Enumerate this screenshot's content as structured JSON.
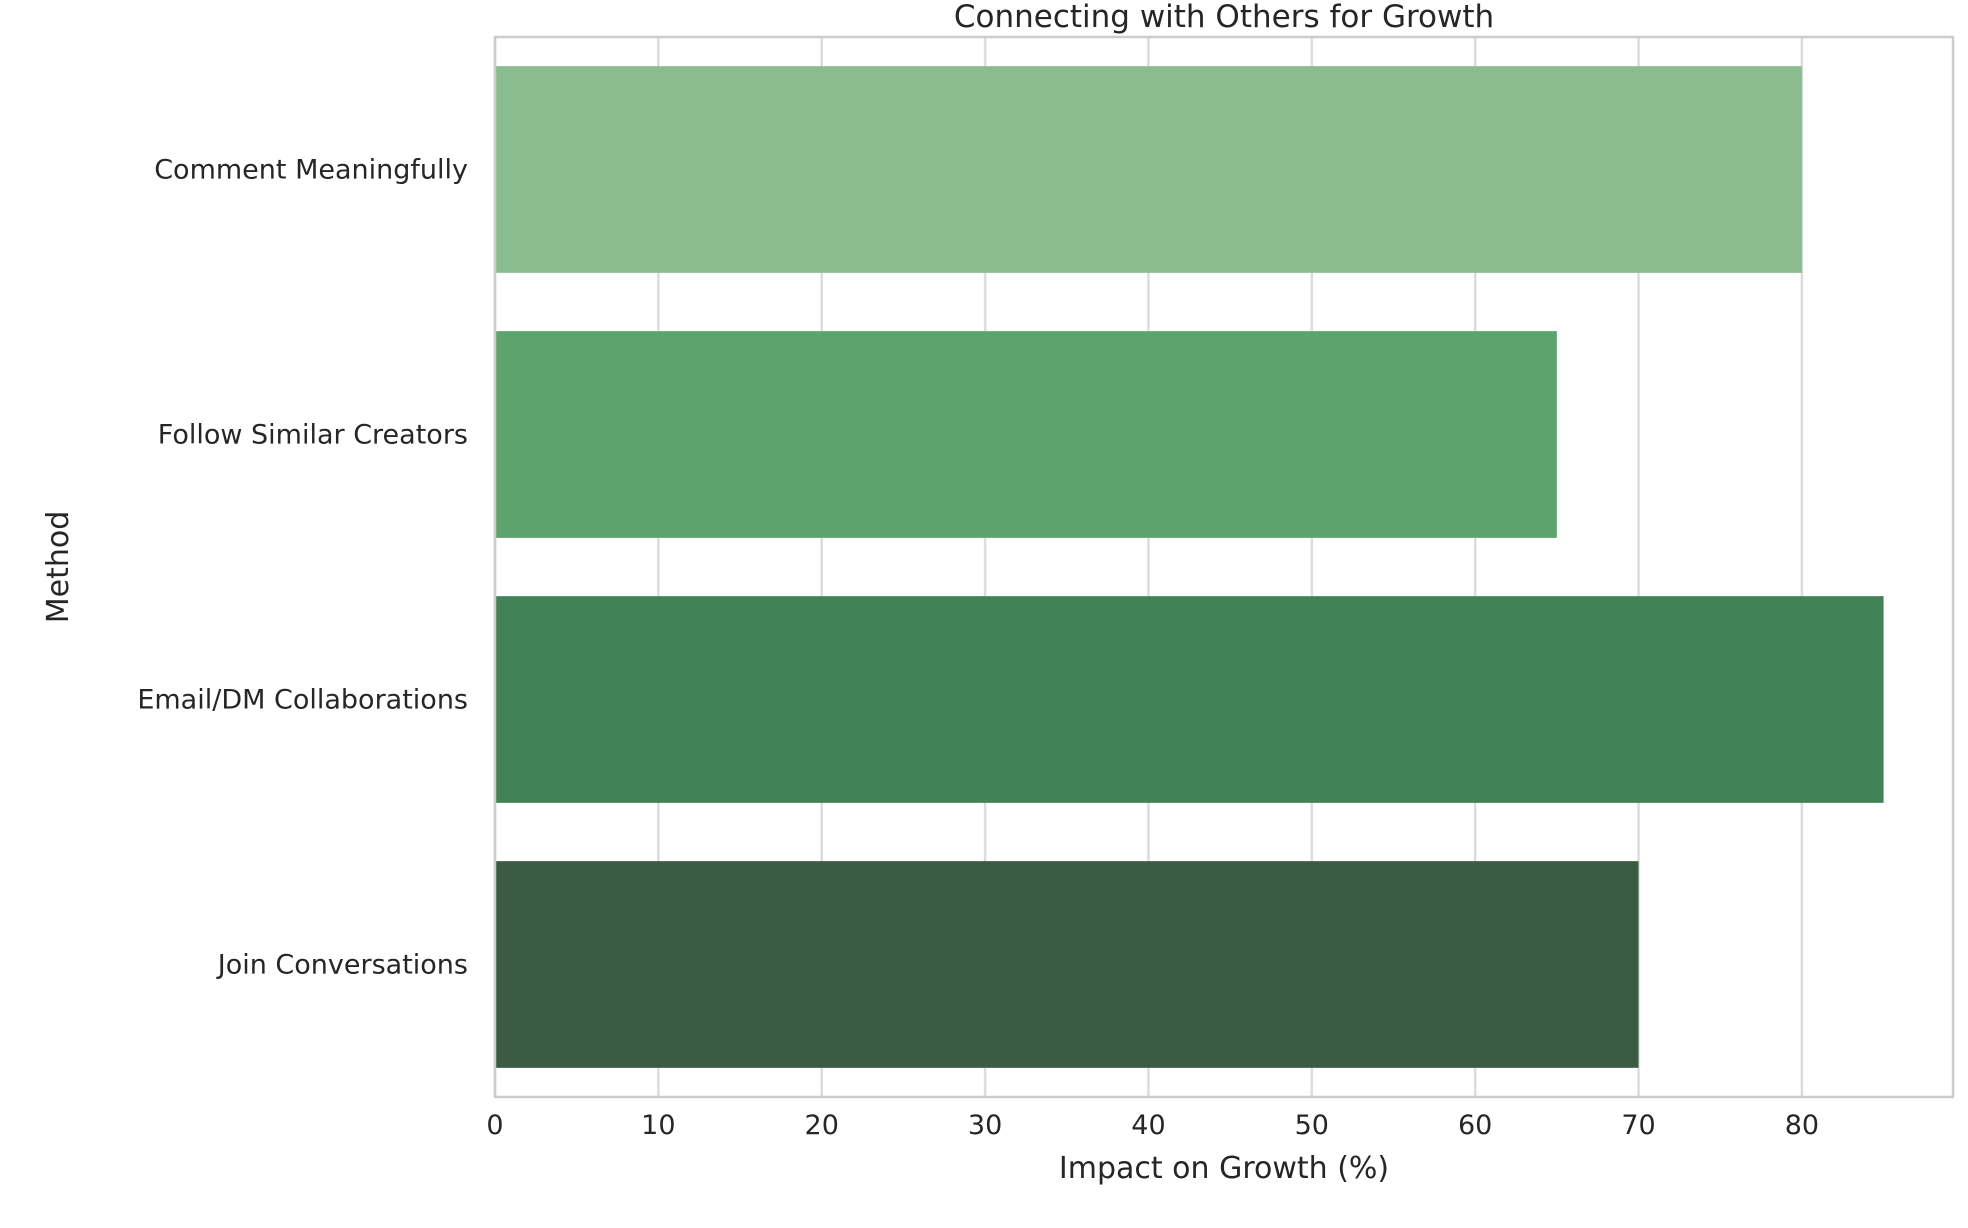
{
  "chart_data": {
    "type": "bar",
    "orientation": "horizontal",
    "title": "Connecting with Others for Growth",
    "xlabel": "Impact on Growth (%)",
    "ylabel": "Method",
    "categories": [
      "Comment Meaningfully",
      "Follow Similar Creators",
      "Email/DM Collaborations",
      "Join Conversations"
    ],
    "values": [
      80,
      65,
      85,
      70
    ],
    "colors": [
      "#8bbc8f",
      "#5da36d",
      "#418256",
      "#3c5b44"
    ],
    "xlim": [
      0,
      89.25
    ],
    "xticks": [
      0,
      10,
      20,
      30,
      40,
      50,
      60,
      70,
      80
    ],
    "grid": true,
    "legend": "none"
  }
}
